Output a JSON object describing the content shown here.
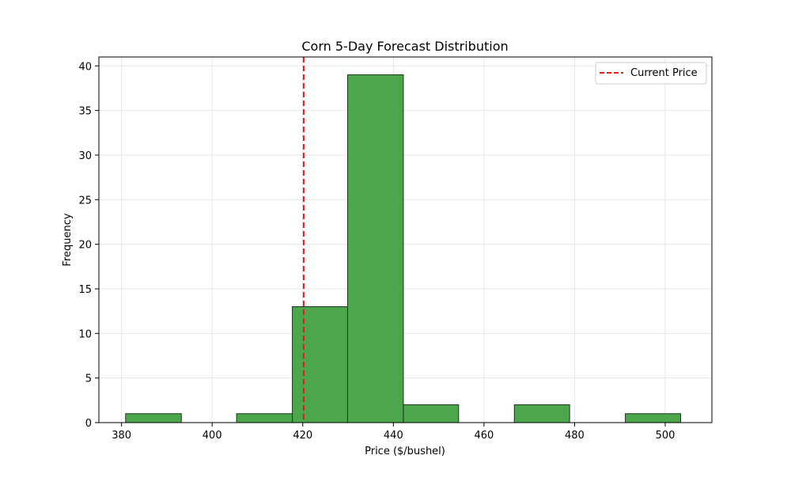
{
  "chart_data": {
    "type": "bar",
    "title": "Corn 5-Day Forecast Distribution",
    "xlabel": "Price ($/bushel)",
    "ylabel": "Frequency",
    "xlim": [
      375.0,
      510.3
    ],
    "ylim": [
      0,
      41
    ],
    "xticks": [
      380,
      400,
      420,
      440,
      460,
      480,
      500
    ],
    "yticks": [
      0,
      5,
      10,
      15,
      20,
      25,
      30,
      35,
      40
    ],
    "grid": true,
    "legend_position": "top-right",
    "bins": [
      {
        "left": 380.9,
        "right": 393.2,
        "count": 1
      },
      {
        "left": 393.2,
        "right": 405.4,
        "count": 0
      },
      {
        "left": 405.4,
        "right": 417.7,
        "count": 1
      },
      {
        "left": 417.7,
        "right": 429.9,
        "count": 13
      },
      {
        "left": 429.9,
        "right": 442.2,
        "count": 39
      },
      {
        "left": 442.2,
        "right": 454.4,
        "count": 2
      },
      {
        "left": 454.4,
        "right": 466.7,
        "count": 0
      },
      {
        "left": 466.7,
        "right": 478.9,
        "count": 2
      },
      {
        "left": 478.9,
        "right": 491.2,
        "count": 0
      },
      {
        "left": 491.2,
        "right": 503.4,
        "count": 1
      }
    ],
    "reference_line": {
      "name": "Current Price",
      "x": 420.2,
      "color": "#e41a1c",
      "style": "dashed"
    },
    "bar_color": "#4ca64c",
    "bar_edge_color": "#1a331a"
  }
}
